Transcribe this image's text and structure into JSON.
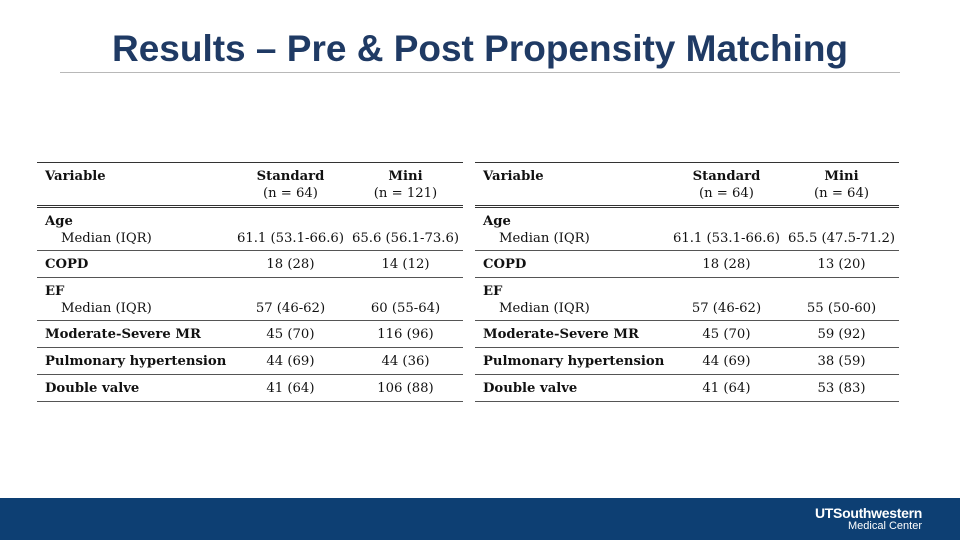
{
  "slide": {
    "title": "Results – Pre & Post Propensity Matching"
  },
  "tables": [
    {
      "header": {
        "variable": "Variable",
        "col1": "Standard",
        "col1_n": "(n = 64)",
        "col2": "Mini",
        "col2_n": "(n = 121)"
      },
      "rows": {
        "age_label": "Age",
        "age_sub": "Median (IQR)",
        "age_std": "61.1 (53.1-66.6)",
        "age_mini": "65.6 (56.1-73.6)",
        "copd_label": "COPD",
        "copd_std": "18 (28)",
        "copd_mini": "14 (12)",
        "ef_label": "EF",
        "ef_sub": "Median (IQR)",
        "ef_std": "57 (46-62)",
        "ef_mini": "60 (55-64)",
        "mr_label": "Moderate-Severe MR",
        "mr_std": "45 (70)",
        "mr_mini": "116 (96)",
        "ph_label": "Pulmonary hypertension",
        "ph_std": "44 (69)",
        "ph_mini": "44 (36)",
        "dv_label": "Double valve",
        "dv_std": "41 (64)",
        "dv_mini": "106 (88)"
      }
    },
    {
      "header": {
        "variable": "Variable",
        "col1": "Standard",
        "col1_n": "(n = 64)",
        "col2": "Mini",
        "col2_n": "(n = 64)"
      },
      "rows": {
        "age_label": "Age",
        "age_sub": "Median (IQR)",
        "age_std": "61.1 (53.1-66.6)",
        "age_mini": "65.5 (47.5-71.2)",
        "copd_label": "COPD",
        "copd_std": "18 (28)",
        "copd_mini": "13 (20)",
        "ef_label": "EF",
        "ef_sub": "Median (IQR)",
        "ef_std": "57 (46-62)",
        "ef_mini": "55 (50-60)",
        "mr_label": "Moderate-Severe MR",
        "mr_std": "45 (70)",
        "mr_mini": "59 (92)",
        "ph_label": "Pulmonary hypertension",
        "ph_std": "44 (69)",
        "ph_mini": "38 (59)",
        "dv_label": "Double valve",
        "dv_std": "41 (64)",
        "dv_mini": "53 (83)"
      }
    }
  ],
  "footer": {
    "logo_line1": "UTSouthwestern",
    "logo_line2": "Medical Center",
    "color": "#0d3f73"
  }
}
